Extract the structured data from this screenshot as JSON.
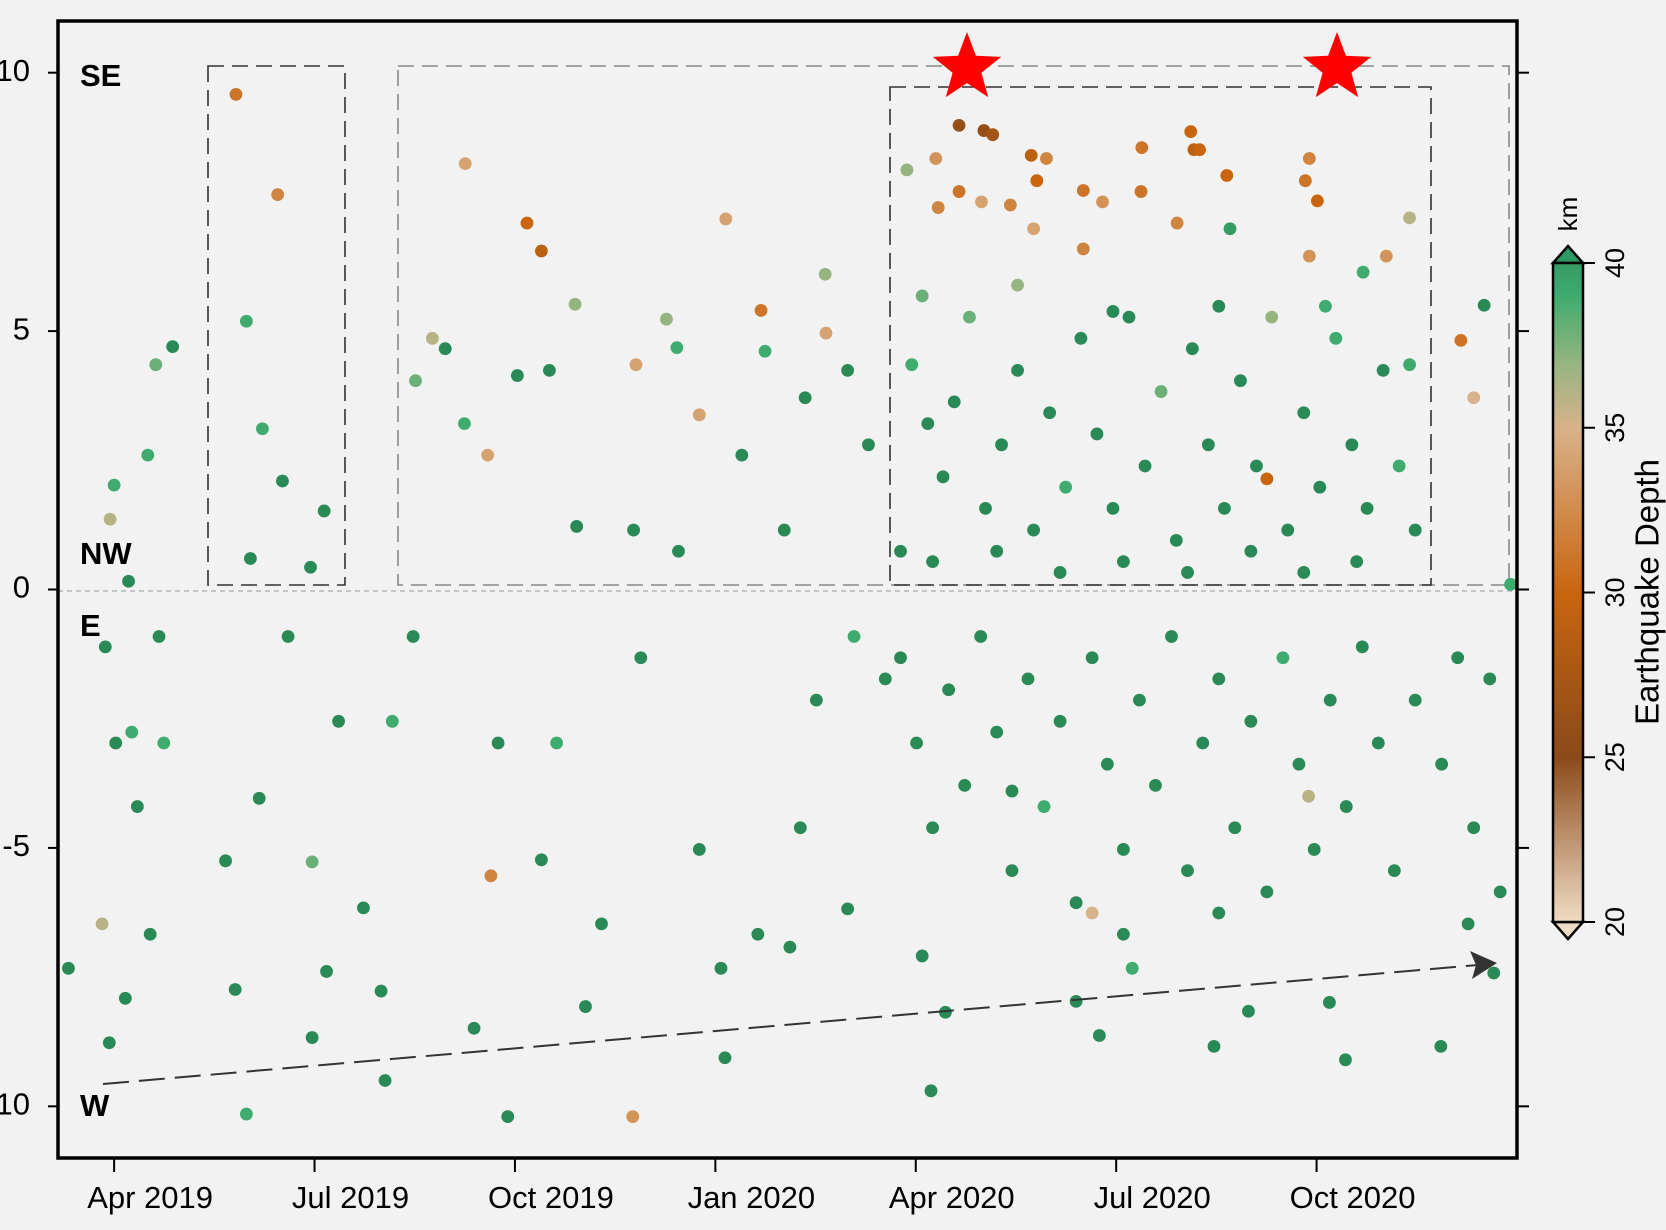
{
  "chart_data": {
    "type": "scatter",
    "annotations": [
      "SE",
      "NW",
      "E",
      "W"
    ],
    "xlim": [
      2019.18,
      2021.0
    ],
    "xticks": [
      {
        "value": 2019.25,
        "label": "Apr 2019"
      },
      {
        "value": 2019.5,
        "label": "Jul 2019"
      },
      {
        "value": 2019.75,
        "label": "Oct 2019"
      },
      {
        "value": 2020.0,
        "label": "Jan 2020"
      },
      {
        "value": 2020.25,
        "label": "Apr 2020"
      },
      {
        "value": 2020.5,
        "label": "Jul 2020"
      },
      {
        "value": 2020.75,
        "label": "Oct 2020"
      }
    ],
    "ylim": [
      -11,
      11
    ],
    "yticks": [
      10,
      5,
      0,
      -5,
      -10
    ],
    "colorbar": {
      "label": "Earthquake Depth",
      "unit": "km",
      "clim": [
        20,
        40
      ],
      "ticks": [
        20,
        25,
        30,
        35,
        40
      ]
    },
    "x": [
      2019.193,
      2019.239,
      2019.25,
      2019.268,
      2019.292,
      2019.302,
      2019.323,
      2019.245,
      2019.244,
      2019.264,
      2019.279,
      2019.252,
      2019.272,
      2019.306,
      2019.312,
      2019.295,
      2019.235,
      2019.402,
      2019.454,
      2019.415,
      2019.435,
      2019.46,
      2019.42,
      2019.495,
      2019.512,
      2019.415,
      2019.401,
      2019.389,
      2019.431,
      2019.467,
      2019.497,
      2019.515,
      2019.497,
      2019.53,
      2019.588,
      2019.583,
      2019.561,
      2019.597,
      2019.623,
      2019.626,
      2019.663,
      2019.688,
      2019.647,
      2019.687,
      2019.716,
      2019.765,
      2019.783,
      2019.753,
      2019.793,
      2019.825,
      2019.827,
      2019.72,
      2019.741,
      2019.699,
      2019.729,
      2019.783,
      2019.802,
      2019.838,
      2019.858,
      2019.897,
      2019.901,
      2019.939,
      2019.952,
      2019.98,
      2020.013,
      2020.057,
      2020.062,
      2019.898,
      2019.954,
      2020.033,
      2020.086,
      2020.112,
      2020.137,
      2020.138,
      2020.165,
      2020.191,
      2019.907,
      2019.98,
      2020.012,
      2020.007,
      2020.053,
      2020.093,
      2020.106,
      2020.126,
      2020.165,
      2020.173,
      2020.239,
      2020.275,
      2020.304,
      2020.335,
      2020.346,
      2020.304,
      2020.278,
      2020.332,
      2020.368,
      2020.394,
      2020.413,
      2020.401,
      2020.397,
      2020.459,
      2020.459,
      2020.483,
      2020.532,
      2020.531,
      2020.576,
      2020.593,
      2020.597,
      2020.604,
      2020.638,
      2020.642,
      2020.741,
      2020.736,
      2020.751,
      2020.741,
      2020.837,
      2020.866,
      2020.93,
      2020.959,
      2020.946,
      2020.688,
      2020.808,
      2020.269,
      2020.287,
      2020.45,
      2020.479,
      2020.52,
      2020.622,
      2020.665,
      2020.766,
      2020.786,
      2020.905,
      2020.971,
      2020.992,
      2020.245,
      2020.265,
      2020.284,
      2020.298,
      2020.317,
      2020.337,
      2020.357,
      2020.377,
      2020.397,
      2020.417,
      2020.437,
      2020.456,
      2020.476,
      2020.496,
      2020.516,
      2020.536,
      2020.556,
      2020.575,
      2020.595,
      2020.615,
      2020.635,
      2020.655,
      2020.675,
      2020.694,
      2020.714,
      2020.734,
      2020.754,
      2020.774,
      2020.794,
      2020.813,
      2020.833,
      2020.853,
      2020.873,
      2020.231,
      2020.271,
      2020.351,
      2020.43,
      2020.509,
      2020.589,
      2020.668,
      2020.734,
      2020.8,
      2020.258,
      2020.377,
      2020.496,
      2020.628,
      2020.761,
      2020.866,
      2020.231,
      2020.251,
      2020.271,
      2020.291,
      2020.311,
      2020.331,
      2020.351,
      2020.37,
      2020.39,
      2020.41,
      2020.43,
      2020.45,
      2020.47,
      2020.489,
      2020.509,
      2020.529,
      2020.549,
      2020.569,
      2020.589,
      2020.608,
      2020.628,
      2020.648,
      2020.668,
      2020.688,
      2020.708,
      2020.728,
      2020.747,
      2020.767,
      2020.787,
      2020.807,
      2020.827,
      2020.847,
      2020.873,
      2020.906,
      2020.926,
      2020.946,
      2020.966,
      2020.979,
      2020.939,
      2020.212,
      2020.258,
      2020.509,
      2020.628,
      2020.37,
      2020.74,
      2020.47
    ],
    "y": [
      -7.33,
      -1.11,
      2.02,
      0.16,
      2.6,
      4.35,
      4.7,
      1.36,
      -8.77,
      -7.91,
      -4.2,
      -2.97,
      -2.76,
      -0.91,
      -2.97,
      -6.67,
      -6.47,
      9.58,
      7.64,
      5.19,
      3.11,
      2.1,
      0.6,
      0.43,
      1.52,
      -10.15,
      -7.74,
      -5.25,
      -4.04,
      -0.91,
      -8.67,
      -7.39,
      -5.27,
      -2.55,
      -9.5,
      -7.77,
      -6.16,
      -2.55,
      -0.91,
      4.04,
      4.66,
      8.24,
      4.86,
      3.21,
      2.6,
      7.09,
      6.55,
      4.14,
      4.24,
      5.52,
      1.22,
      -5.54,
      -10.2,
      -8.49,
      -2.97,
      -5.23,
      -2.97,
      -8.07,
      -6.47,
      -10.2,
      4.35,
      5.23,
      4.68,
      3.38,
      7.17,
      5.4,
      4.61,
      1.15,
      0.74,
      2.6,
      1.15,
      3.71,
      6.1,
      4.96,
      4.24,
      2.8,
      -1.32,
      -5.03,
      -9.06,
      -7.33,
      -6.67,
      -6.92,
      -4.61,
      -2.14,
      -6.18,
      -0.91,
      8.12,
      8.34,
      8.98,
      8.88,
      8.8,
      7.7,
      7.39,
      7.5,
      7.44,
      8.4,
      8.34,
      7.91,
      6.98,
      6.59,
      7.72,
      7.5,
      8.55,
      7.7,
      7.09,
      8.86,
      8.51,
      8.51,
      8.01,
      6.98,
      8.34,
      7.91,
      7.52,
      6.45,
      6.45,
      7.19,
      4.82,
      5.5,
      3.71,
      2.14,
      6.14,
      -9.7,
      -8.18,
      -7.97,
      -8.63,
      -7.33,
      -8.84,
      -8.16,
      -7.99,
      -9.1,
      -8.84,
      -7.42,
      0.1,
      4.35,
      3.21,
      2.18,
      3.63,
      5.27,
      1.57,
      2.8,
      4.24,
      1.15,
      3.42,
      1.98,
      4.86,
      3.01,
      1.57,
      5.27,
      2.39,
      3.83,
      0.95,
      4.66,
      2.8,
      1.57,
      4.04,
      2.39,
      5.27,
      1.15,
      3.42,
      1.98,
      4.86,
      2.8,
      1.57,
      4.24,
      2.39,
      1.15,
      0.74,
      0.54,
      0.74,
      0.33,
      0.54,
      0.33,
      0.74,
      0.33,
      0.54,
      5.68,
      5.89,
      5.38,
      5.48,
      5.48,
      4.35,
      -1.32,
      -2.97,
      -4.61,
      -1.94,
      -3.79,
      -0.91,
      -2.76,
      -5.44,
      -1.73,
      -4.2,
      -2.55,
      -6.06,
      -1.32,
      -3.38,
      -5.03,
      -2.14,
      -3.79,
      -0.91,
      -5.44,
      -2.97,
      -1.73,
      -4.61,
      -2.55,
      -5.85,
      -1.32,
      -3.38,
      -5.03,
      -2.14,
      -4.2,
      -1.11,
      -2.97,
      -5.44,
      -2.14,
      -3.38,
      -1.32,
      -4.61,
      -1.73,
      -5.85,
      -6.47,
      -1.73,
      -7.09,
      -6.67,
      -6.26,
      -3.9,
      -4.0,
      -6.26
    ],
    "depth": [
      41,
      41,
      39,
      41,
      39,
      38,
      41,
      36,
      41,
      41,
      41,
      41,
      39,
      41,
      39,
      41,
      36,
      31,
      32,
      39,
      39,
      41,
      41,
      41,
      41,
      39,
      41,
      41,
      41,
      41,
      41,
      41,
      38,
      41,
      41,
      41,
      41,
      39,
      41,
      38,
      41,
      34,
      36,
      39,
      34,
      30,
      29,
      41,
      41,
      37,
      41,
      32,
      41,
      41,
      41,
      41,
      39,
      41,
      41,
      33,
      34,
      37,
      39,
      34,
      34,
      31,
      39,
      41,
      41,
      41,
      41,
      41,
      37,
      34,
      41,
      41,
      41,
      41,
      41,
      41,
      41,
      41,
      41,
      41,
      41,
      39,
      37,
      33,
      26,
      26,
      27,
      31,
      32,
      34,
      32,
      29,
      32,
      30,
      34,
      32,
      31,
      33,
      31,
      31,
      32,
      30,
      29,
      30,
      30,
      40,
      32,
      31,
      30,
      33,
      33,
      36,
      31,
      41,
      35,
      30,
      39,
      41,
      41,
      41,
      41,
      39,
      41,
      41,
      41,
      41,
      41,
      41,
      39,
      39,
      41,
      41,
      41,
      38,
      41,
      41,
      41,
      41,
      41,
      39,
      41,
      41,
      41,
      41,
      41,
      38,
      41,
      41,
      41,
      41,
      41,
      41,
      37,
      41,
      41,
      41,
      39,
      41,
      41,
      41,
      39,
      41,
      41,
      41,
      41,
      41,
      41,
      41,
      41,
      41,
      41,
      38,
      37,
      41,
      41,
      39,
      39,
      41,
      41,
      41,
      41,
      41,
      41,
      41,
      41,
      41,
      39,
      41,
      41,
      41,
      41,
      41,
      41,
      41,
      41,
      41,
      41,
      41,
      41,
      41,
      41,
      39,
      41,
      41,
      41,
      41,
      41,
      41,
      41,
      41,
      41,
      41,
      41,
      41,
      41,
      41,
      41,
      41,
      41,
      41,
      41,
      36,
      35,
      35
    ]
  }
}
